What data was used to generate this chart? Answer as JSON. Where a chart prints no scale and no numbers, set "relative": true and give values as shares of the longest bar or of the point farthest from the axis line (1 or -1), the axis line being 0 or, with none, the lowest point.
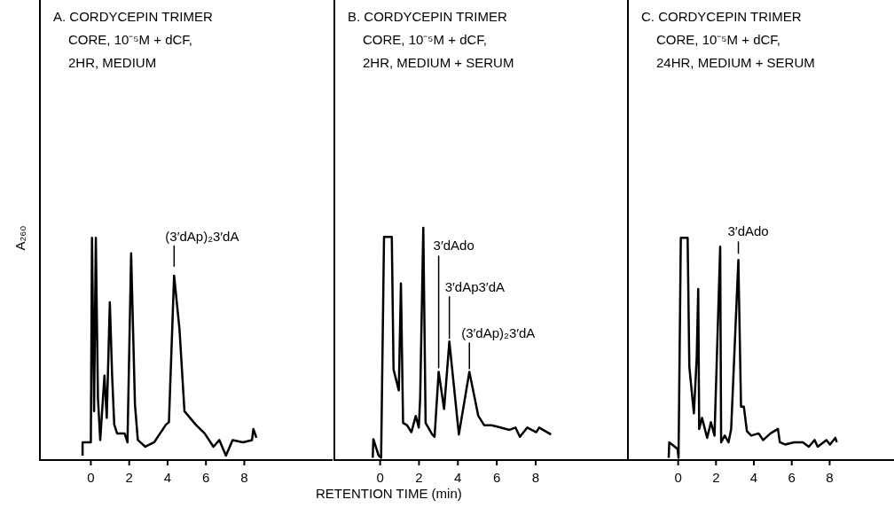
{
  "chart_data": [
    {
      "type": "line",
      "title": "A. CORDYCEPIN TRIMER\nCORE, 10⁻⁵M + dCF,\n2HR, MEDIUM",
      "ylabel": "A₂₆₀",
      "relative": true,
      "color": "#000000",
      "xlim": [
        -2.7,
        12.6
      ],
      "xticks": [
        0,
        2,
        4,
        6,
        8
      ],
      "x": [
        -0.43,
        -0.43,
        -0.17,
        0,
        0.06,
        0.17,
        0.26,
        0.37,
        0.49,
        0.71,
        0.83,
        0.99,
        1.11,
        1.22,
        1.37,
        1.76,
        1.91,
        2.1,
        2.3,
        2.45,
        2.84,
        3.3,
        3.92,
        4.07,
        4.34,
        4.62,
        4.88,
        5.46,
        5.93,
        6.39,
        6.7,
        7.04,
        7.39,
        7.93,
        8.4,
        8.47,
        8.63
      ],
      "values": [
        0.02,
        0.08,
        0.08,
        0.08,
        1,
        0.22,
        1,
        0.28,
        0.09,
        0.38,
        0.19,
        0.71,
        0.38,
        0.16,
        0.12,
        0.12,
        0.08,
        0.93,
        0.25,
        0.09,
        0.06,
        0.08,
        0.16,
        0.17,
        0.83,
        0.59,
        0.22,
        0.16,
        0.12,
        0.06,
        0.09,
        0.02,
        0.09,
        0.08,
        0.09,
        0.14,
        0.1
      ],
      "annotations": [
        {
          "text": "(3′dAp)₂3′dA",
          "x": 4.34,
          "y": 0.83
        }
      ]
    },
    {
      "type": "line",
      "title": "B. CORDYCEPIN TRIMER\nCORE, 10⁻⁵M + dCF,\n2HR, MEDIUM + SERUM",
      "xlabel": "RETENTION TIME (min)",
      "relative": true,
      "color": "#000000",
      "xlim": [
        -2.4,
        12.7
      ],
      "xticks": [
        0,
        2,
        4,
        6,
        8
      ],
      "x": [
        -0.38,
        -0.35,
        -0.08,
        0.05,
        0.2,
        0.6,
        0.69,
        0.84,
        0.96,
        1.07,
        1.18,
        1.38,
        1.61,
        1.83,
        1.99,
        2.06,
        2.22,
        2.34,
        2.68,
        2.8,
        3.01,
        3.29,
        3.56,
        4.05,
        4.59,
        5.05,
        5.35,
        5.73,
        6.19,
        6.65,
        6.96,
        7.19,
        7.57,
        8.03,
        8.18,
        8.79
      ],
      "values": [
        0.01,
        0.09,
        0.02,
        0.01,
        0.96,
        0.96,
        0.39,
        0.34,
        0.3,
        0.76,
        0.16,
        0.15,
        0.12,
        0.19,
        0.14,
        0.27,
        1,
        0.16,
        0.11,
        0.1,
        0.38,
        0.22,
        0.51,
        0.11,
        0.38,
        0.19,
        0.15,
        0.15,
        0.14,
        0.13,
        0.14,
        0.1,
        0.14,
        0.12,
        0.14,
        0.11
      ],
      "annotations": [
        {
          "text": "3′dAdo",
          "x": 3.01,
          "y": 0.38
        },
        {
          "text": "3′dAp3′dA",
          "x": 3.56,
          "y": 0.51
        },
        {
          "text": "(3′dAp)₂3′dA",
          "x": 4.59,
          "y": 0.38
        }
      ]
    },
    {
      "type": "line",
      "title": "C. CORDYCEPIN TRIMER\nCORE, 10⁻⁵M + dCF,\n24HR, MEDIUM + SERUM",
      "relative": true,
      "color": "#000000",
      "xlim": [
        -2.7,
        11.4
      ],
      "xticks": [
        0,
        2,
        4,
        6,
        8
      ],
      "x": [
        -0.5,
        -0.47,
        -0.03,
        0.02,
        0.14,
        0.5,
        0.59,
        0.83,
        0.98,
        1.06,
        1.11,
        1.26,
        1.53,
        1.73,
        1.92,
        2.22,
        2.27,
        2.46,
        2.66,
        2.8,
        3.18,
        3.32,
        3.47,
        3.63,
        3.86,
        4.25,
        4.49,
        4.88,
        5.27,
        5.37,
        5.65,
        6.12,
        6.59,
        6.9,
        7.21,
        7.37,
        7.83,
        8.02,
        8.3,
        8.38
      ],
      "values": [
        0.01,
        0.08,
        0.05,
        0.01,
        1,
        1,
        0.42,
        0.21,
        0.46,
        0.77,
        0.14,
        0.19,
        0.1,
        0.17,
        0.11,
        0.96,
        0.08,
        0.11,
        0.08,
        0.14,
        0.9,
        0.24,
        0.24,
        0.13,
        0.11,
        0.12,
        0.09,
        0.12,
        0.14,
        0.08,
        0.07,
        0.08,
        0.08,
        0.06,
        0.09,
        0.06,
        0.09,
        0.07,
        0.1,
        0.08
      ],
      "annotations": [
        {
          "text": "3′dAdo",
          "x": 3.18,
          "y": 0.9
        }
      ]
    }
  ]
}
